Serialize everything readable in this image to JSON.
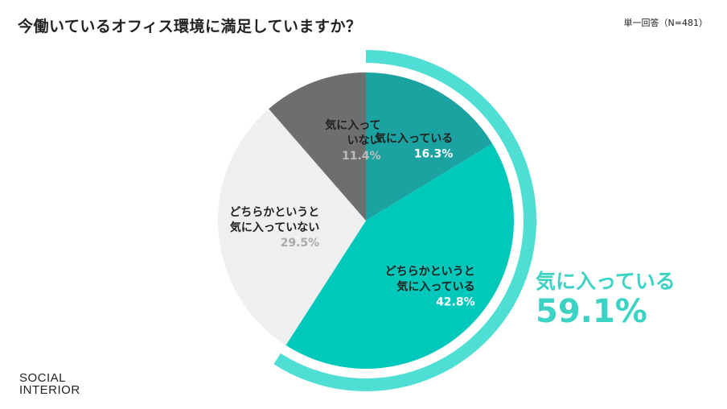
{
  "title": "今働いているオフィス環境に満足していますか？",
  "note": "単一回答（N=481）",
  "summary": {
    "label": "気に入っている",
    "value": "59.1%"
  },
  "logo": {
    "line1": "SOCIAL",
    "line2": "INTERIOR"
  },
  "chart_data": {
    "type": "pie",
    "slices": [
      {
        "label_lines": [
          "気に入っている"
        ],
        "value": 16.3,
        "value_label": "16.3%",
        "color": "#1ba3a1",
        "label_color": "#222222",
        "value_color": "#ffffff"
      },
      {
        "label_lines": [
          "どちらかというと",
          "気に入っている"
        ],
        "value": 42.8,
        "value_label": "42.8%",
        "color": "#00c9bb",
        "label_color": "#222222",
        "value_color": "#ffffff"
      },
      {
        "label_lines": [
          "どちらかというと",
          "気に入っていない"
        ],
        "value": 29.5,
        "value_label": "29.5%",
        "color": "#efefef",
        "label_color": "#222222",
        "value_color": "#aaaaaa"
      },
      {
        "label_lines": [
          "気に入って",
          "いない"
        ],
        "value": 11.4,
        "value_label": "11.4%",
        "color": "#6d6f6f",
        "label_color": "#222222",
        "value_color": "#bbbbbb"
      }
    ],
    "highlight": {
      "label": "気に入っている",
      "value": 59.1,
      "color": "#4fded3"
    }
  }
}
